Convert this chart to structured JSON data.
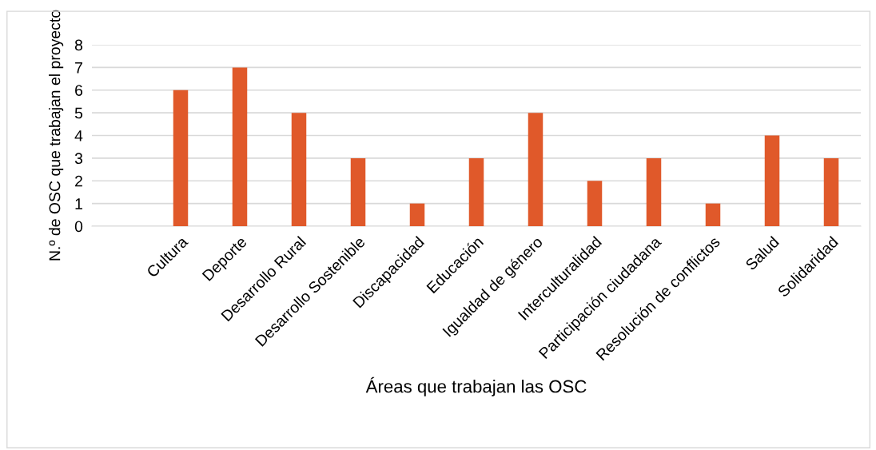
{
  "chart_data": {
    "type": "bar",
    "xlabel": "Áreas que trabajan las OSC",
    "ylabel": "N.º de OSC que trabajan el proyecto",
    "categories": [
      null,
      "Cultura",
      "Deporte",
      "Desarrollo Rural",
      "Desarrollo Sostenible",
      "Discapacidad",
      "Educación",
      "Igualdad de género",
      "Interculturalidad",
      "Participación ciudadana",
      "Resolución de conflictos",
      "Salud",
      "Solidaridad"
    ],
    "values": [
      null,
      6,
      7,
      5,
      3,
      1,
      3,
      5,
      2,
      3,
      1,
      4,
      3
    ],
    "color": "#e0592a",
    "ylim": [
      0,
      8
    ],
    "yticks": [
      0,
      1,
      2,
      3,
      4,
      5,
      6,
      7,
      8
    ],
    "grid": "y"
  }
}
